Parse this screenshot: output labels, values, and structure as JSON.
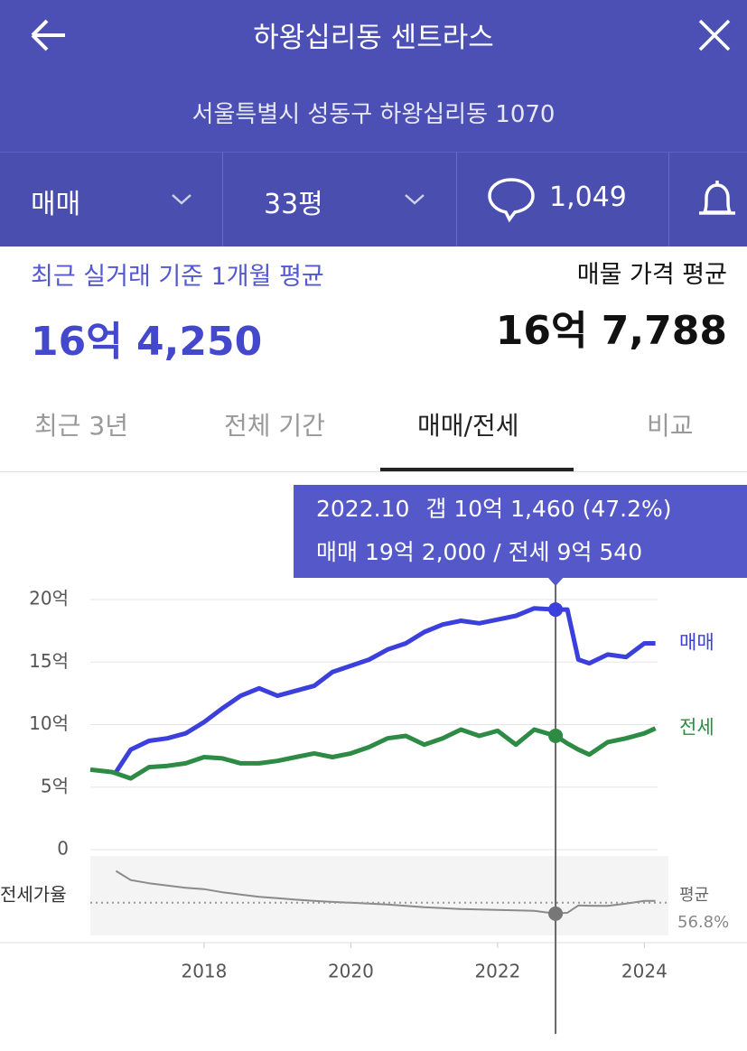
{
  "header": {
    "title": "하왕십리동 센트라스",
    "address": "서울특별시 성동구 하왕십리동 1070"
  },
  "toolbar": {
    "deal_type": "매매",
    "size": "33평",
    "comments": "1,049"
  },
  "stats": {
    "recent_label": "최근 실거래 기준 1개월 평균",
    "recent_value": "16억 4,250",
    "listing_label": "매물 가격 평균",
    "listing_value": "16억 7,788"
  },
  "tabs": [
    "최근 3년",
    "전체 기간",
    "매매/전세",
    "비교"
  ],
  "chart_data": {
    "type": "line",
    "x": [
      2016.45,
      2016.75,
      2016.8,
      2017.0,
      2017.25,
      2017.5,
      2017.75,
      2018.0,
      2018.25,
      2018.5,
      2018.75,
      2019.0,
      2019.25,
      2019.5,
      2019.75,
      2020.0,
      2020.25,
      2020.5,
      2020.75,
      2021.0,
      2021.25,
      2021.5,
      2021.75,
      2022.0,
      2022.25,
      2022.5,
      2022.79,
      2022.95,
      2023.1,
      2023.25,
      2023.5,
      2023.75,
      2024.0,
      2024.15
    ],
    "series": [
      {
        "name": "매매",
        "color": "#3b3fdc",
        "values": [
          null,
          null,
          6.2,
          8.0,
          8.7,
          8.9,
          9.3,
          10.2,
          11.3,
          12.3,
          12.9,
          12.3,
          12.7,
          13.1,
          14.2,
          14.7,
          15.2,
          16.0,
          16.5,
          17.4,
          18.0,
          18.3,
          18.1,
          18.4,
          18.7,
          19.3,
          19.2,
          19.2,
          15.2,
          14.9,
          15.6,
          15.4,
          16.5,
          16.5
        ]
      },
      {
        "name": "전세",
        "color": "#2e8b45",
        "values": [
          6.4,
          6.2,
          6.1,
          5.7,
          6.6,
          6.7,
          6.9,
          7.4,
          7.3,
          6.9,
          6.9,
          7.1,
          7.4,
          7.7,
          7.4,
          7.7,
          8.2,
          8.9,
          9.1,
          8.4,
          8.9,
          9.6,
          9.1,
          9.5,
          8.4,
          9.6,
          9.1,
          8.5,
          8.0,
          7.6,
          8.6,
          8.9,
          9.3,
          9.7
        ]
      }
    ],
    "xlim": [
      2016.45,
      2024.18
    ],
    "xticks": [
      2018,
      2020,
      2022,
      2024
    ],
    "ylim": [
      0,
      20
    ],
    "yticks": [
      0,
      {
        "value": 5,
        "label": "5억"
      },
      {
        "value": 10,
        "label": "10억"
      },
      {
        "value": 15,
        "label": "15억"
      },
      {
        "value": 20,
        "label": "20억"
      }
    ],
    "grid": true,
    "ratio": {
      "name": "전세가율",
      "color": "#8a8a8a",
      "ylim": [
        28,
        98
      ],
      "values": [
        null,
        null,
        84.8,
        76.8,
        74,
        72,
        70,
        68.8,
        66,
        64,
        62,
        60.8,
        59.5,
        58.4,
        57.5,
        56.8,
        56,
        55.2,
        54,
        52.8,
        52,
        51.2,
        50.8,
        50.4,
        50,
        49.6,
        47.2,
        48,
        54.4,
        54.2,
        54,
        56,
        58.4,
        58.4
      ],
      "average": 56.8,
      "average_name": "평균",
      "average_label": "56.8%"
    },
    "tooltip": {
      "x": {
        "value": 2022.79,
        "label": "2022.10"
      },
      "lines": [
        "갭 10억 1,460 (47.2%)",
        "매매 19억 2,000 / 전세 9억 540"
      ]
    }
  }
}
